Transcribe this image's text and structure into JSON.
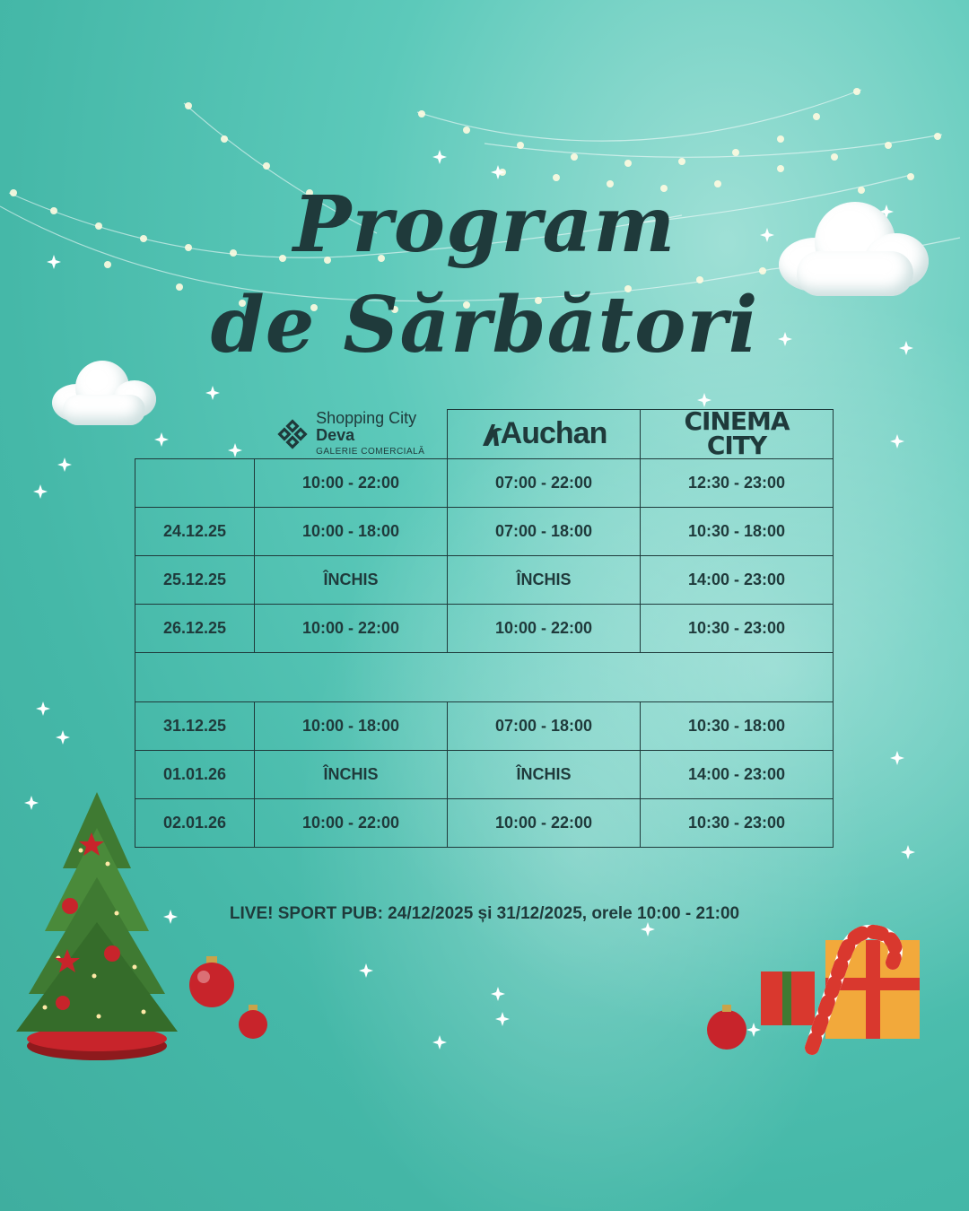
{
  "title": {
    "line1": "Program",
    "line2": "de Sărbători"
  },
  "brands": {
    "shopping_city": {
      "line1": "Shopping City",
      "line2": "Deva",
      "line3": "GALERIE COMERCIALĂ"
    },
    "auchan": "Auchan",
    "cinema_city": {
      "line1": "CINEMA",
      "line2": "CITY"
    }
  },
  "schedule": [
    {
      "date": "",
      "mall": "10:00 - 22:00",
      "auchan": "07:00 - 22:00",
      "cinema": "12:30 - 23:00"
    },
    {
      "date": "24.12.25",
      "mall": "10:00 - 18:00",
      "auchan": "07:00 - 18:00",
      "cinema": "10:30 - 18:00"
    },
    {
      "date": "25.12.25",
      "mall": "ÎNCHIS",
      "auchan": "ÎNCHIS",
      "cinema": "14:00 - 23:00"
    },
    {
      "date": "26.12.25",
      "mall": "10:00 - 22:00",
      "auchan": "10:00 - 22:00",
      "cinema": "10:30 - 23:00"
    },
    {
      "date": "31.12.25",
      "mall": "10:00 - 18:00",
      "auchan": "07:00 - 18:00",
      "cinema": "10:30 - 18:00"
    },
    {
      "date": "01.01.26",
      "mall": "ÎNCHIS",
      "auchan": "ÎNCHIS",
      "cinema": "14:00 - 23:00"
    },
    {
      "date": "02.01.26",
      "mall": "10:00 - 22:00",
      "auchan": "10:00 - 22:00",
      "cinema": "10:30 - 23:00"
    }
  ],
  "note": "LIVE! SPORT PUB: 24/12/2025 și 31/12/2025, orele 10:00 - 21:00",
  "colors": {
    "text": "#1f3a3b",
    "background": "#4fbfb0",
    "accent_red": "#c8242b",
    "tree_green": "#3f7a32"
  },
  "icons": [
    "shopping-city-logo-icon",
    "auchan-bird-icon",
    "christmas-tree-icon",
    "ornament-icon",
    "gift-box-icon",
    "candy-cane-icon",
    "cloud-icon",
    "sparkle-icon"
  ]
}
